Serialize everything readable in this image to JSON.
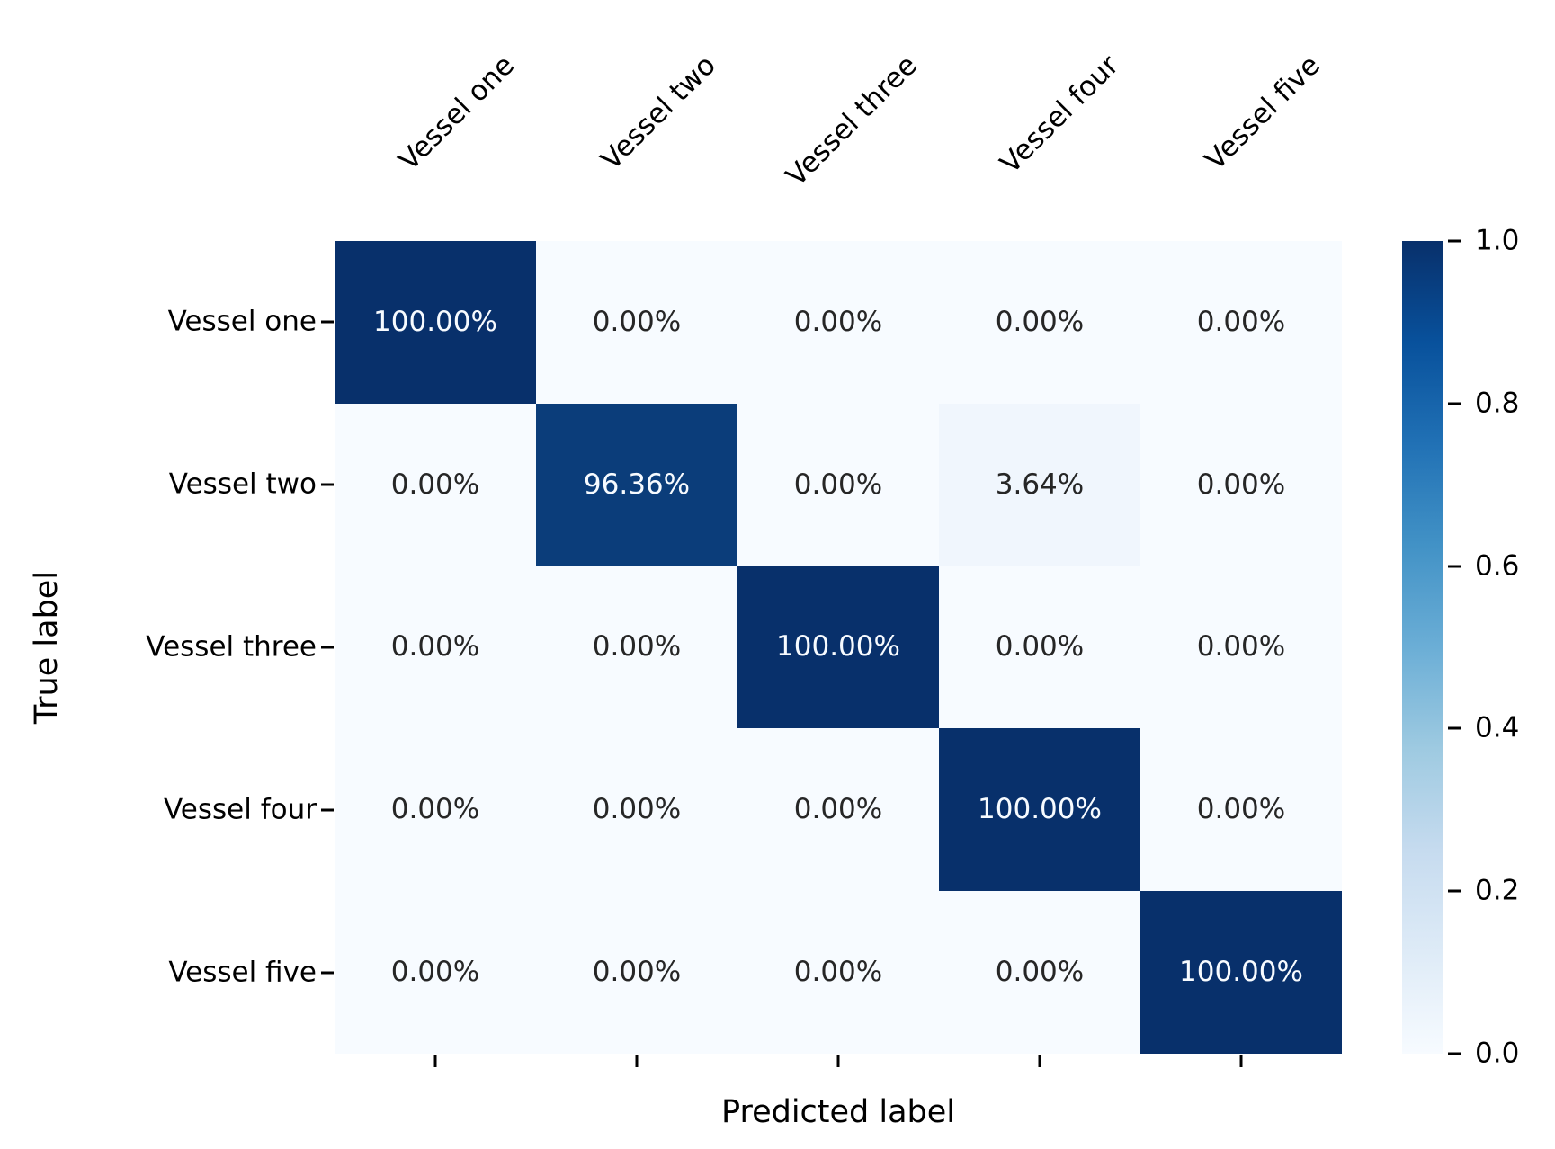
{
  "chart_data": {
    "type": "heatmap",
    "title": "",
    "xlabel": "Predicted label",
    "ylabel": "True label",
    "x_categories": [
      "Vessel one",
      "Vessel two",
      "Vessel three",
      "Vessel four",
      "Vessel five"
    ],
    "y_categories": [
      "Vessel one",
      "Vessel two",
      "Vessel three",
      "Vessel four",
      "Vessel five"
    ],
    "values": [
      [
        1.0,
        0.0,
        0.0,
        0.0,
        0.0
      ],
      [
        0.0,
        0.9636,
        0.0,
        0.0364,
        0.0
      ],
      [
        0.0,
        0.0,
        1.0,
        0.0,
        0.0
      ],
      [
        0.0,
        0.0,
        0.0,
        1.0,
        0.0
      ],
      [
        0.0,
        0.0,
        0.0,
        0.0,
        1.0
      ]
    ],
    "cell_labels": [
      [
        "100.00%",
        "0.00%",
        "0.00%",
        "0.00%",
        "0.00%"
      ],
      [
        "0.00%",
        "96.36%",
        "0.00%",
        "3.64%",
        "0.00%"
      ],
      [
        "0.00%",
        "0.00%",
        "100.00%",
        "0.00%",
        "0.00%"
      ],
      [
        "0.00%",
        "0.00%",
        "0.00%",
        "100.00%",
        "0.00%"
      ],
      [
        "0.00%",
        "0.00%",
        "0.00%",
        "0.00%",
        "100.00%"
      ]
    ],
    "cell_colors": [
      [
        "#08306b",
        "#f7fbff",
        "#f7fbff",
        "#f7fbff",
        "#f7fbff"
      ],
      [
        "#f7fbff",
        "#0b3d7a",
        "#f7fbff",
        "#f0f6fd",
        "#f7fbff"
      ],
      [
        "#f7fbff",
        "#f7fbff",
        "#08306b",
        "#f7fbff",
        "#f7fbff"
      ],
      [
        "#f7fbff",
        "#f7fbff",
        "#f7fbff",
        "#08306b",
        "#f7fbff"
      ],
      [
        "#f7fbff",
        "#f7fbff",
        "#f7fbff",
        "#f7fbff",
        "#08306b"
      ]
    ],
    "colormap": "Blues",
    "colorbar": {
      "ticks": [
        "1.0",
        "0.8",
        "0.6",
        "0.4",
        "0.2",
        "0.0"
      ],
      "tick_values": [
        1.0,
        0.8,
        0.6,
        0.4,
        0.2,
        0.0
      ],
      "vmin": 0.0,
      "vmax": 1.0,
      "position": "right"
    },
    "colors": {
      "cmap_max": "#08306b",
      "cmap_min": "#f7fbff",
      "text_on_dark": "#f7fbff",
      "text_on_light": "#262626",
      "axis_text": "#000000",
      "background": "#ffffff"
    },
    "grid": false,
    "legend": null
  }
}
